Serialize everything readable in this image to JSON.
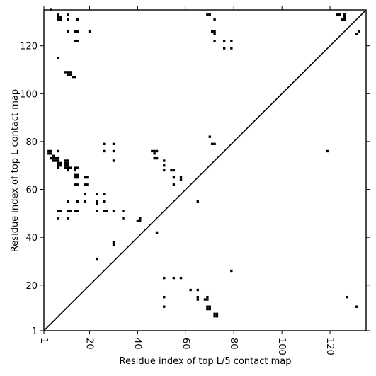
{
  "chart_data": {
    "type": "heatmap",
    "title": "",
    "xlabel": "Residue index of top L/5 contact map",
    "ylabel": "Residue index of top L contact map",
    "xlim": [
      1,
      135
    ],
    "ylim": [
      1,
      135
    ],
    "x_ticks": [
      1,
      20,
      40,
      60,
      80,
      100,
      120
    ],
    "y_ticks": [
      1,
      20,
      40,
      60,
      80,
      100,
      120
    ],
    "diagonal_line": true,
    "grid": false,
    "cell_color": "#000000",
    "background_color": "#ffffff",
    "upper_triangle_top_L_contacts": [
      [
        4,
        135
      ],
      [
        7,
        133
      ],
      [
        7,
        132
      ],
      [
        8,
        132
      ],
      [
        7,
        131
      ],
      [
        8,
        131
      ],
      [
        11,
        133
      ],
      [
        11,
        131
      ],
      [
        11,
        126
      ],
      [
        15,
        131
      ],
      [
        14,
        126
      ],
      [
        15,
        126
      ],
      [
        20,
        126
      ],
      [
        14,
        122
      ],
      [
        15,
        122
      ],
      [
        7,
        115
      ],
      [
        10,
        109
      ],
      [
        11,
        109
      ],
      [
        12,
        109
      ],
      [
        11,
        108
      ],
      [
        12,
        108
      ],
      [
        13,
        107
      ],
      [
        14,
        107
      ],
      [
        3,
        76
      ],
      [
        4,
        76
      ],
      [
        3,
        75
      ],
      [
        4,
        75
      ],
      [
        5,
        74
      ],
      [
        4,
        73
      ],
      [
        5,
        73
      ],
      [
        6,
        73
      ],
      [
        7,
        73
      ],
      [
        5,
        72
      ],
      [
        6,
        72
      ],
      [
        7,
        72
      ],
      [
        7,
        71
      ],
      [
        8,
        71
      ],
      [
        7,
        70
      ],
      [
        8,
        70
      ],
      [
        7,
        69
      ],
      [
        10,
        72
      ],
      [
        11,
        72
      ],
      [
        10,
        71
      ],
      [
        11,
        71
      ],
      [
        10,
        70
      ],
      [
        11,
        70
      ],
      [
        10,
        69
      ],
      [
        11,
        69
      ],
      [
        12,
        69
      ],
      [
        11,
        68
      ],
      [
        14,
        69
      ],
      [
        15,
        69
      ],
      [
        14,
        68
      ],
      [
        7,
        76
      ],
      [
        14,
        66
      ],
      [
        15,
        66
      ],
      [
        14,
        65
      ],
      [
        15,
        65
      ],
      [
        14,
        62
      ],
      [
        15,
        62
      ],
      [
        18,
        65
      ],
      [
        19,
        65
      ],
      [
        18,
        62
      ],
      [
        19,
        62
      ],
      [
        18,
        58
      ],
      [
        23,
        58
      ],
      [
        26,
        58
      ],
      [
        26,
        55
      ],
      [
        23,
        55
      ],
      [
        23,
        54
      ],
      [
        18,
        55
      ],
      [
        15,
        55
      ],
      [
        11,
        55
      ],
      [
        7,
        51
      ],
      [
        8,
        51
      ],
      [
        11,
        51
      ],
      [
        12,
        51
      ],
      [
        14,
        51
      ],
      [
        15,
        51
      ],
      [
        23,
        51
      ],
      [
        26,
        51
      ],
      [
        27,
        51
      ],
      [
        30,
        51
      ],
      [
        34,
        51
      ],
      [
        7,
        48
      ],
      [
        11,
        48
      ],
      [
        34,
        48
      ],
      [
        41,
        48
      ],
      [
        40,
        47
      ],
      [
        41,
        47
      ],
      [
        48,
        42
      ],
      [
        30,
        38
      ],
      [
        30,
        37
      ],
      [
        23,
        31
      ],
      [
        26,
        79
      ],
      [
        30,
        79
      ],
      [
        26,
        76
      ],
      [
        30,
        76
      ],
      [
        30,
        72
      ],
      [
        46,
        76
      ],
      [
        47,
        76
      ],
      [
        48,
        76
      ],
      [
        47,
        75
      ],
      [
        47,
        73
      ],
      [
        48,
        73
      ],
      [
        51,
        72
      ],
      [
        51,
        70
      ],
      [
        51,
        68
      ],
      [
        54,
        68
      ],
      [
        55,
        68
      ],
      [
        55,
        65
      ],
      [
        58,
        65
      ],
      [
        58,
        64
      ],
      [
        55,
        62
      ],
      [
        65,
        55
      ],
      [
        69,
        133
      ],
      [
        70,
        133
      ],
      [
        72,
        131
      ],
      [
        71,
        126
      ],
      [
        72,
        126
      ],
      [
        72,
        125
      ],
      [
        72,
        122
      ],
      [
        76,
        122
      ],
      [
        79,
        122
      ],
      [
        76,
        119
      ],
      [
        79,
        119
      ],
      [
        70,
        82
      ],
      [
        71,
        79
      ],
      [
        72,
        79
      ],
      [
        123,
        133
      ],
      [
        124,
        133
      ],
      [
        126,
        133
      ],
      [
        126,
        132
      ],
      [
        125,
        131
      ],
      [
        126,
        131
      ],
      [
        131,
        125
      ],
      [
        132,
        126
      ]
    ],
    "lower_triangle_top_L5_contacts": [
      [
        119,
        76
      ],
      [
        79,
        26
      ],
      [
        51,
        23
      ],
      [
        55,
        23
      ],
      [
        58,
        23
      ],
      [
        51,
        15
      ],
      [
        51,
        11
      ],
      [
        62,
        18
      ],
      [
        65,
        18
      ],
      [
        65,
        15
      ],
      [
        65,
        14
      ],
      [
        68,
        14
      ],
      [
        69,
        15
      ],
      [
        69,
        14
      ],
      [
        69,
        11
      ],
      [
        70,
        11
      ],
      [
        69,
        10
      ],
      [
        70,
        10
      ],
      [
        72,
        8
      ],
      [
        73,
        8
      ],
      [
        72,
        7
      ],
      [
        73,
        7
      ],
      [
        127,
        15
      ],
      [
        131,
        11
      ]
    ]
  }
}
